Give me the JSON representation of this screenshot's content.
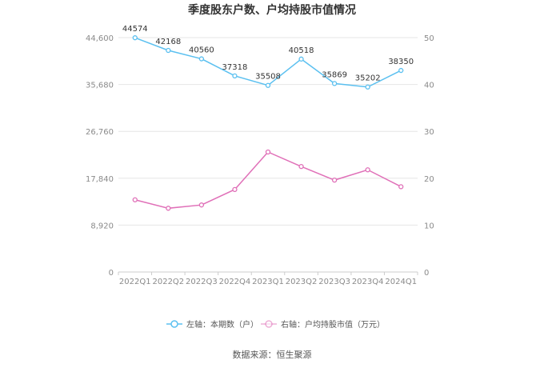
{
  "chart_data": {
    "type": "line",
    "title": "季度股东户数、户均持股市值情况",
    "categories": [
      "2022Q1",
      "2022Q2",
      "2022Q3",
      "2022Q4",
      "2023Q1",
      "2023Q2",
      "2023Q3",
      "2023Q4",
      "2024Q1"
    ],
    "left_axis": {
      "ticks": [
        "0",
        "8,920",
        "17,840",
        "26,760",
        "35,680",
        "44,600"
      ],
      "ylim": [
        0,
        44600
      ]
    },
    "right_axis": {
      "ticks": [
        "0",
        "10",
        "20",
        "30",
        "40",
        "50"
      ],
      "ylim": [
        0,
        50
      ]
    },
    "grid": true,
    "legend_position": "bottom",
    "series": [
      {
        "name": "左轴：本期数（户）",
        "axis": "left",
        "color": "#5bc0f0",
        "values": [
          44574,
          42168,
          40560,
          37318,
          35508,
          40518,
          35869,
          35202,
          38350
        ],
        "labels": [
          "44574",
          "42168",
          "40560",
          "37318",
          "35508",
          "40518",
          "35869",
          "35202",
          "38350"
        ]
      },
      {
        "name": "右轴：户均持股市值（万元）",
        "axis": "right",
        "color": "#e070b8",
        "values": [
          15.4,
          13.6,
          14.3,
          17.6,
          25.6,
          22.5,
          19.6,
          21.8,
          18.2
        ]
      }
    ],
    "source": "数据来源：恒生聚源"
  }
}
